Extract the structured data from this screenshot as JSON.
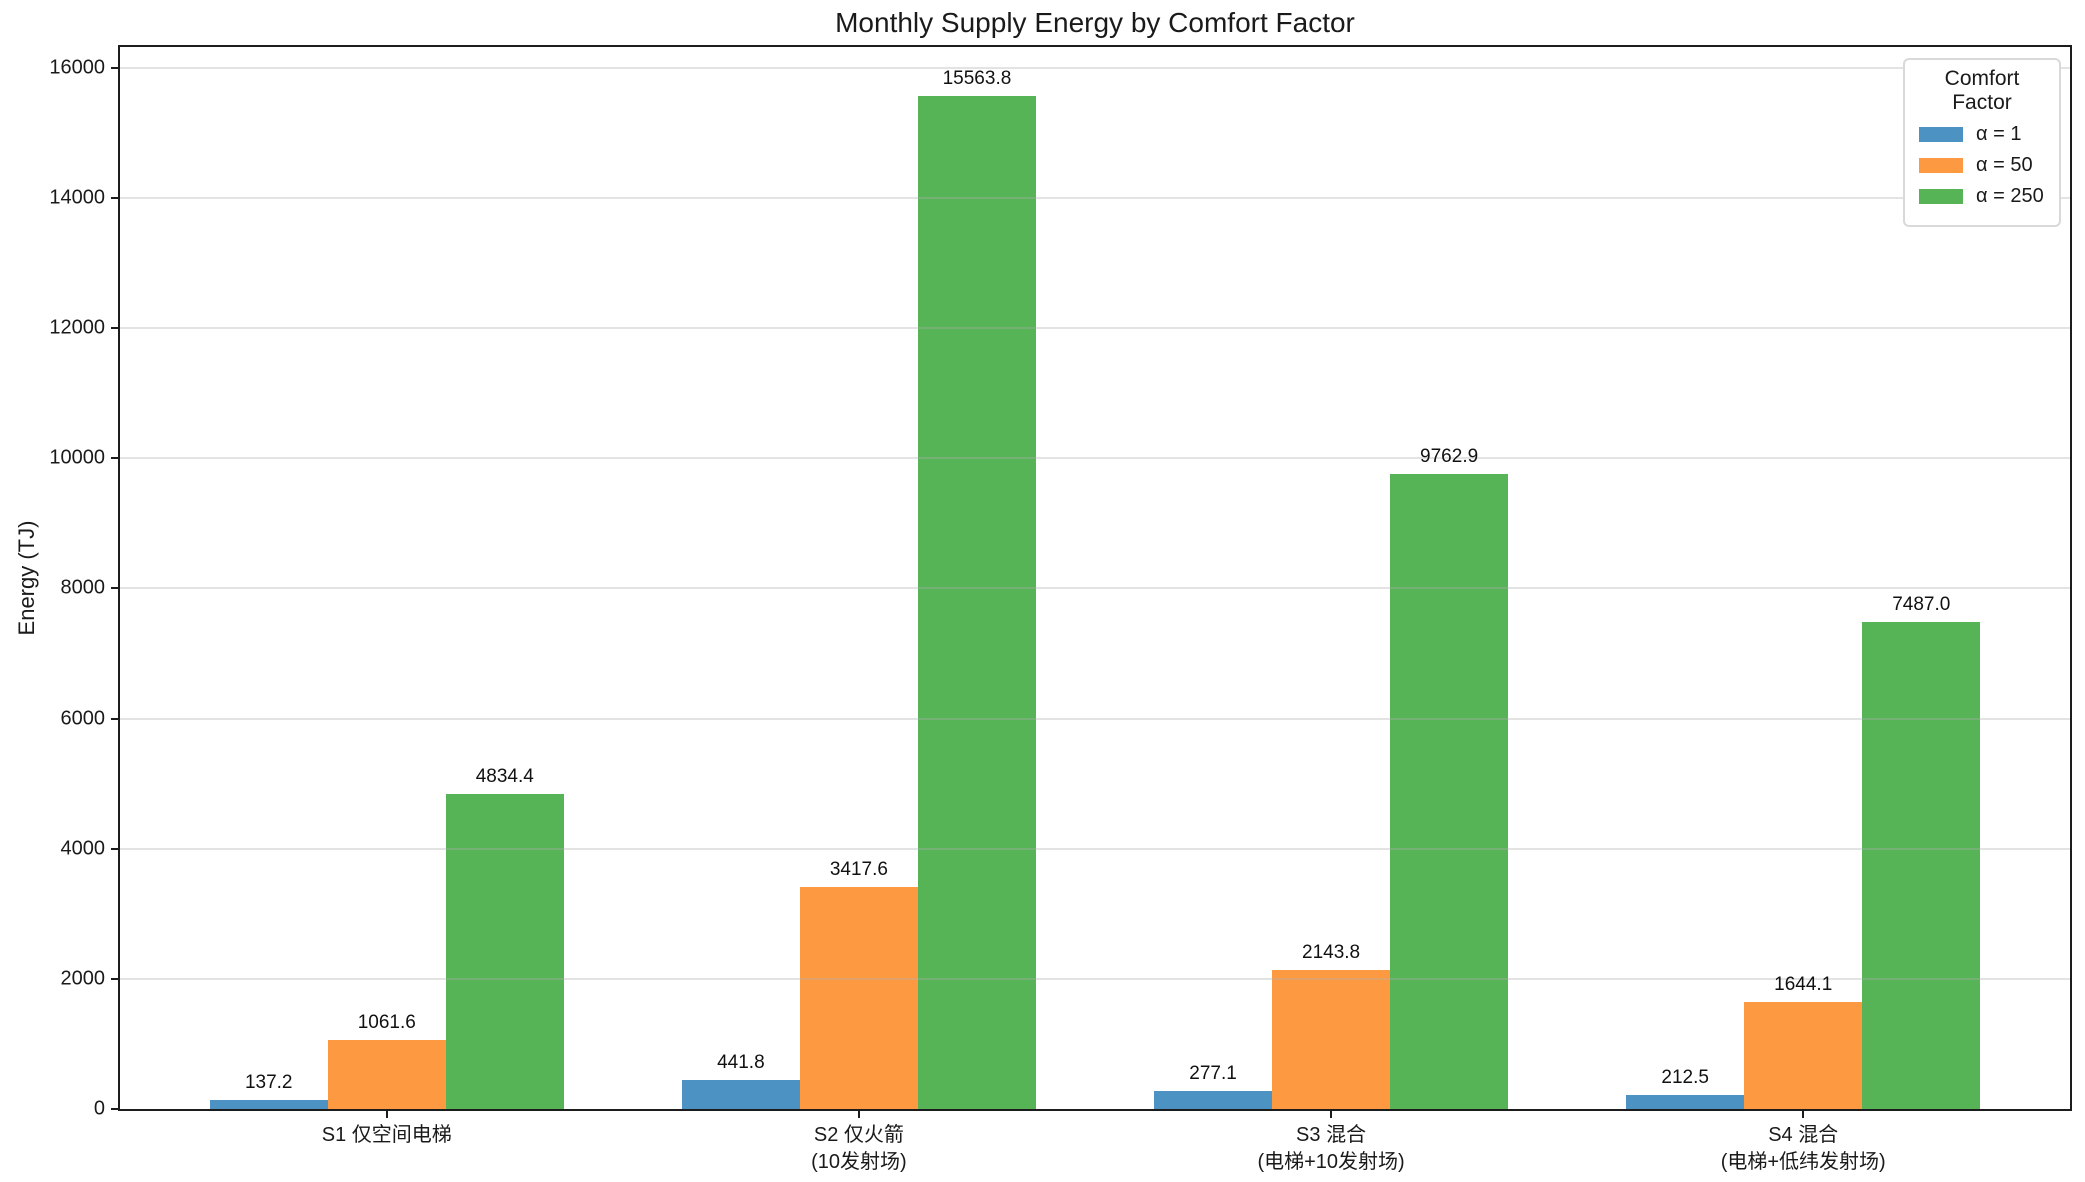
{
  "chart_data": {
    "type": "bar",
    "title": "Monthly Supply Energy by Comfort Factor",
    "ylabel": "Energy (TJ)",
    "xlabel": "",
    "legend": {
      "title": "Comfort Factor",
      "position": "upper right"
    },
    "categories": [
      "S1 仅空间电梯",
      "S2 仅火箭\n(10发射场)",
      "S3 混合\n(电梯+10发射场)",
      "S4 混合\n(电梯+低纬发射场)"
    ],
    "series": [
      {
        "name": "α = 1",
        "color": "#4C92C3",
        "values": [
          137.2,
          441.8,
          277.1,
          212.5
        ],
        "labels": [
          "137.2",
          "441.8",
          "277.1",
          "212.5"
        ]
      },
      {
        "name": "α = 50",
        "color": "#FD9A41",
        "values": [
          1061.6,
          3417.6,
          2143.8,
          1644.1
        ],
        "labels": [
          "1061.6",
          "3417.6",
          "2143.8",
          "1644.1"
        ]
      },
      {
        "name": "α = 250",
        "color": "#56B356",
        "values": [
          4834.4,
          15563.8,
          9762.9,
          7487.0
        ],
        "labels": [
          "4834.4",
          "15563.8",
          "9762.9",
          "7487.0"
        ]
      }
    ],
    "yticks": [
      0,
      2000,
      4000,
      6000,
      8000,
      10000,
      12000,
      14000,
      16000
    ],
    "ylim": [
      0,
      16320
    ],
    "xlim": [
      -0.565,
      3.565
    ],
    "bar_width": 0.25,
    "grid": "y",
    "value_labels": true,
    "colors": {
      "spine": "#1c1c1c",
      "grid": "#b0b0b0",
      "background": "#ffffff"
    }
  }
}
